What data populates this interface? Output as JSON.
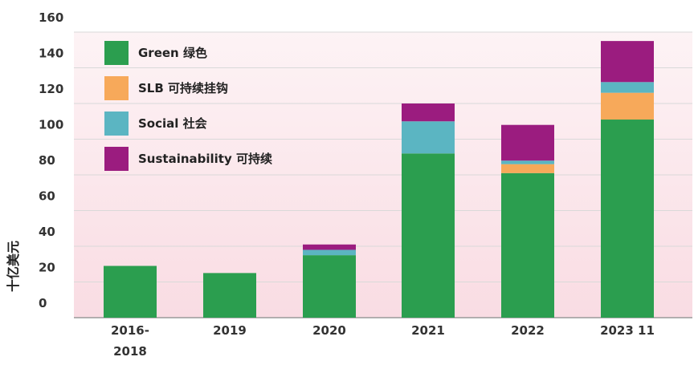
{
  "chart_data": {
    "type": "bar",
    "stacked": true,
    "ylabel": "十亿美元",
    "ylim": [
      0,
      160
    ],
    "yticks": [
      "0",
      "20",
      "40",
      "60",
      "80",
      "100",
      "120",
      "140",
      "160"
    ],
    "grid": true,
    "legend_position": "top-left",
    "categories": [
      "2016-2018",
      "2019",
      "2020",
      "2021",
      "2022",
      "2023 11"
    ],
    "category_labels": [
      [
        "2016-",
        "2018"
      ],
      [
        "2019"
      ],
      [
        "2020"
      ],
      [
        "2021"
      ],
      [
        "2022"
      ],
      [
        "2023 11"
      ]
    ],
    "series": [
      {
        "name": "Green 绿色",
        "color": "#2b9e4f",
        "values": [
          29,
          25,
          35,
          92,
          81,
          111
        ]
      },
      {
        "name": "SLB 可持续挂钩",
        "color": "#f7a95a",
        "values": [
          0,
          0,
          0,
          0,
          5,
          15
        ]
      },
      {
        "name": "Social 社会",
        "color": "#5bb5c2",
        "values": [
          0,
          0,
          3,
          18,
          2,
          6
        ]
      },
      {
        "name": "Sustainability 可持续",
        "color": "#9b1c7f",
        "values": [
          0,
          0,
          3,
          10,
          20,
          23
        ]
      }
    ]
  }
}
